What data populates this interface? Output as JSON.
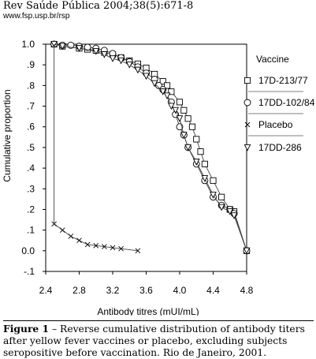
{
  "header": {
    "journal": "Rev Saúde Pública 2004;38(5):671-8",
    "url": "www.fsp.usp.br/rsp"
  },
  "caption": {
    "label": "Figure 1",
    "text": " – Reverse cumulative distribution of antibody titers after yellow fever vaccines or placebo, excluding subjects seropositive before vaccination. Rio de Janeiro, 2001."
  },
  "chart_data": {
    "type": "line",
    "xlabel": "Antibody titres (mUI/mL)",
    "ylabel": "Cumulative proportion",
    "xlim": [
      2.4,
      4.8
    ],
    "ylim": [
      -0.1,
      1.0
    ],
    "x_ticks": [
      "2.4",
      "2.8",
      "3.2",
      "3.6",
      "4.0",
      "4.4",
      "4.8"
    ],
    "y_ticks": [
      "-.1",
      "0.0",
      ".1",
      ".2",
      ".3",
      ".4",
      ".5",
      ".6",
      ".7",
      ".8",
      ".9",
      "1.0"
    ],
    "legend_title": "Vaccine",
    "legend_position": "right",
    "grid": false,
    "series": [
      {
        "name": "17D-213/77",
        "marker": "square",
        "x": [
          2.5,
          2.6,
          2.8,
          2.9,
          3.0,
          3.1,
          3.2,
          3.3,
          3.4,
          3.5,
          3.6,
          3.7,
          3.8,
          3.85,
          3.9,
          4.0,
          4.05,
          4.1,
          4.15,
          4.2,
          4.25,
          4.3,
          4.4,
          4.5,
          4.6,
          4.65,
          4.8
        ],
        "y": [
          1.0,
          0.99,
          0.98,
          0.975,
          0.97,
          0.96,
          0.95,
          0.935,
          0.92,
          0.905,
          0.885,
          0.855,
          0.82,
          0.8,
          0.77,
          0.72,
          0.68,
          0.64,
          0.6,
          0.54,
          0.48,
          0.42,
          0.34,
          0.26,
          0.2,
          0.19,
          0.0
        ]
      },
      {
        "name": "17DD-102/84",
        "marker": "circle",
        "x": [
          2.5,
          2.6,
          2.7,
          2.8,
          2.9,
          3.0,
          3.1,
          3.2,
          3.3,
          3.4,
          3.5,
          3.6,
          3.7,
          3.75,
          3.8,
          3.9,
          3.95,
          4.0,
          4.05,
          4.1,
          4.2,
          4.3,
          4.4,
          4.5,
          4.6,
          4.65,
          4.8
        ],
        "y": [
          1.0,
          0.995,
          0.995,
          0.99,
          0.985,
          0.98,
          0.97,
          0.955,
          0.935,
          0.915,
          0.89,
          0.86,
          0.83,
          0.8,
          0.78,
          0.72,
          0.66,
          0.6,
          0.56,
          0.5,
          0.42,
          0.34,
          0.26,
          0.22,
          0.2,
          0.18,
          0.0
        ]
      },
      {
        "name": "Placebo",
        "marker": "cross",
        "x": [
          2.5,
          2.6,
          2.7,
          2.8,
          2.9,
          3.0,
          3.1,
          3.2,
          3.3,
          3.5
        ],
        "y": [
          0.13,
          0.1,
          0.07,
          0.05,
          0.03,
          0.025,
          0.02,
          0.015,
          0.01,
          0.0
        ]
      },
      {
        "name": "17DD-286",
        "marker": "triangle",
        "x": [
          2.5,
          2.6,
          2.8,
          3.0,
          3.1,
          3.2,
          3.3,
          3.4,
          3.5,
          3.6,
          3.7,
          3.8,
          3.85,
          3.9,
          3.95,
          4.0,
          4.05,
          4.1,
          4.2,
          4.3,
          4.4,
          4.5,
          4.6,
          4.65,
          4.8
        ],
        "y": [
          1.0,
          0.99,
          0.98,
          0.965,
          0.95,
          0.93,
          0.92,
          0.9,
          0.875,
          0.845,
          0.81,
          0.77,
          0.75,
          0.7,
          0.68,
          0.64,
          0.56,
          0.5,
          0.43,
          0.35,
          0.27,
          0.21,
          0.19,
          0.17,
          0.0
        ]
      }
    ]
  }
}
